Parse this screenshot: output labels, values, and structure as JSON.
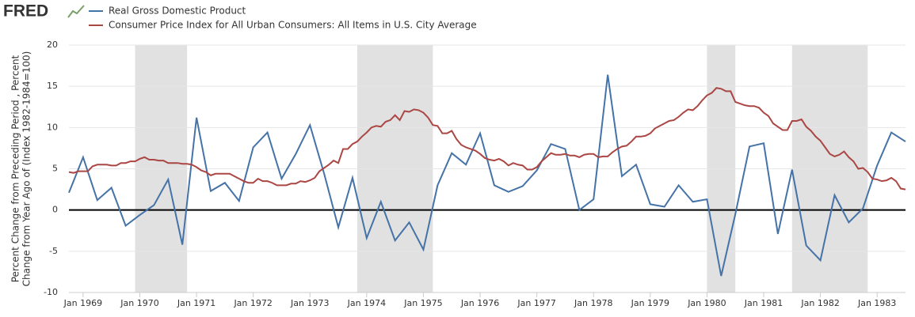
{
  "logo": "FRED",
  "chart_data": {
    "type": "line",
    "y_label_lines": [
      "Percent Change from Preceding Period , Percent",
      "Change from Year Ago of (Index 1982-1984=100)"
    ],
    "xlim": [
      "1968-10",
      "1983-07"
    ],
    "xticks": [
      {
        "value": "1969-01",
        "label": "Jan 1969"
      },
      {
        "value": "1970-01",
        "label": "Jan 1970"
      },
      {
        "value": "1971-01",
        "label": "Jan 1971"
      },
      {
        "value": "1972-01",
        "label": "Jan 1972"
      },
      {
        "value": "1973-01",
        "label": "Jan 1973"
      },
      {
        "value": "1974-01",
        "label": "Jan 1974"
      },
      {
        "value": "1975-01",
        "label": "Jan 1975"
      },
      {
        "value": "1976-01",
        "label": "Jan 1976"
      },
      {
        "value": "1977-01",
        "label": "Jan 1977"
      },
      {
        "value": "1978-01",
        "label": "Jan 1978"
      },
      {
        "value": "1979-01",
        "label": "Jan 1979"
      },
      {
        "value": "1980-01",
        "label": "Jan 1980"
      },
      {
        "value": "1981-01",
        "label": "Jan 1981"
      },
      {
        "value": "1982-01",
        "label": "Jan 1982"
      },
      {
        "value": "1983-01",
        "label": "Jan 1983"
      }
    ],
    "ylim": [
      -10,
      20
    ],
    "yticks": [
      -10,
      -5,
      0,
      5,
      10,
      15,
      20
    ],
    "grid": true,
    "zero_line": true,
    "recessions": [
      [
        "1969-12",
        "1970-11"
      ],
      [
        "1973-11",
        "1975-03"
      ],
      [
        "1980-01",
        "1980-07"
      ],
      [
        "1981-07",
        "1982-11"
      ]
    ],
    "series": [
      {
        "name": "Real Gross Domestic Product",
        "color": "#4572a7",
        "x": [
          "1968-10",
          "1969-01",
          "1969-04",
          "1969-07",
          "1969-10",
          "1970-01",
          "1970-04",
          "1970-07",
          "1970-10",
          "1971-01",
          "1971-04",
          "1971-07",
          "1971-10",
          "1972-01",
          "1972-04",
          "1972-07",
          "1972-10",
          "1973-01",
          "1973-04",
          "1973-07",
          "1973-10",
          "1974-01",
          "1974-04",
          "1974-07",
          "1974-10",
          "1975-01",
          "1975-04",
          "1975-07",
          "1975-10",
          "1976-01",
          "1976-04",
          "1976-07",
          "1976-10",
          "1977-01",
          "1977-04",
          "1977-07",
          "1977-10",
          "1978-01",
          "1978-04",
          "1978-07",
          "1978-10",
          "1979-01",
          "1979-04",
          "1979-07",
          "1979-10",
          "1980-01",
          "1980-04",
          "1980-07",
          "1980-10",
          "1981-01",
          "1981-04",
          "1981-07",
          "1981-10",
          "1982-01",
          "1982-04",
          "1982-07",
          "1982-10",
          "1983-01",
          "1983-04",
          "1983-07"
        ],
        "values": [
          2.1,
          6.4,
          1.2,
          2.7,
          -1.9,
          -0.6,
          0.6,
          3.7,
          -4.2,
          11.2,
          2.3,
          3.3,
          1.1,
          7.6,
          9.4,
          3.8,
          6.8,
          10.3,
          4.4,
          -2.1,
          3.9,
          -3.4,
          1.0,
          -3.7,
          -1.5,
          -4.8,
          3.0,
          6.9,
          5.5,
          9.3,
          3.0,
          2.2,
          2.9,
          4.8,
          8.0,
          7.4,
          0.0,
          1.3,
          16.4,
          4.1,
          5.5,
          0.7,
          0.4,
          3.0,
          1.0,
          1.3,
          -8.0,
          -0.5,
          7.7,
          8.1,
          -2.9,
          4.9,
          -4.3,
          -6.1,
          1.8,
          -1.5,
          0.2,
          5.4,
          9.4,
          8.3
        ]
      },
      {
        "name": "Consumer Price Index for All Urban Consumers: All Items in U.S. City Average",
        "color": "#aa4643",
        "x": [
          "1968-10",
          "1968-11",
          "1968-12",
          "1969-01",
          "1969-02",
          "1969-03",
          "1969-04",
          "1969-05",
          "1969-06",
          "1969-07",
          "1969-08",
          "1969-09",
          "1969-10",
          "1969-11",
          "1969-12",
          "1970-01",
          "1970-02",
          "1970-03",
          "1970-04",
          "1970-05",
          "1970-06",
          "1970-07",
          "1970-08",
          "1970-09",
          "1970-10",
          "1970-11",
          "1970-12",
          "1971-01",
          "1971-02",
          "1971-03",
          "1971-04",
          "1971-05",
          "1971-06",
          "1971-07",
          "1971-08",
          "1971-09",
          "1971-10",
          "1971-11",
          "1971-12",
          "1972-01",
          "1972-02",
          "1972-03",
          "1972-04",
          "1972-05",
          "1972-06",
          "1972-07",
          "1972-08",
          "1972-09",
          "1972-10",
          "1972-11",
          "1972-12",
          "1973-01",
          "1973-02",
          "1973-03",
          "1973-04",
          "1973-05",
          "1973-06",
          "1973-07",
          "1973-08",
          "1973-09",
          "1973-10",
          "1973-11",
          "1973-12",
          "1974-01",
          "1974-02",
          "1974-03",
          "1974-04",
          "1974-05",
          "1974-06",
          "1974-07",
          "1974-08",
          "1974-09",
          "1974-10",
          "1974-11",
          "1974-12",
          "1975-01",
          "1975-02",
          "1975-03",
          "1975-04",
          "1975-05",
          "1975-06",
          "1975-07",
          "1975-08",
          "1975-09",
          "1975-10",
          "1975-11",
          "1975-12",
          "1976-01",
          "1976-02",
          "1976-03",
          "1976-04",
          "1976-05",
          "1976-06",
          "1976-07",
          "1976-08",
          "1976-09",
          "1976-10",
          "1976-11",
          "1976-12",
          "1977-01",
          "1977-02",
          "1977-03",
          "1977-04",
          "1977-05",
          "1977-06",
          "1977-07",
          "1977-08",
          "1977-09",
          "1977-10",
          "1977-11",
          "1977-12",
          "1978-01",
          "1978-02",
          "1978-03",
          "1978-04",
          "1978-05",
          "1978-06",
          "1978-07",
          "1978-08",
          "1978-09",
          "1978-10",
          "1978-11",
          "1978-12",
          "1979-01",
          "1979-02",
          "1979-03",
          "1979-04",
          "1979-05",
          "1979-06",
          "1979-07",
          "1979-08",
          "1979-09",
          "1979-10",
          "1979-11",
          "1979-12",
          "1980-01",
          "1980-02",
          "1980-03",
          "1980-04",
          "1980-05",
          "1980-06",
          "1980-07",
          "1980-08",
          "1980-09",
          "1980-10",
          "1980-11",
          "1980-12",
          "1981-01",
          "1981-02",
          "1981-03",
          "1981-04",
          "1981-05",
          "1981-06",
          "1981-07",
          "1981-08",
          "1981-09",
          "1981-10",
          "1981-11",
          "1981-12",
          "1982-01",
          "1982-02",
          "1982-03",
          "1982-04",
          "1982-05",
          "1982-06",
          "1982-07",
          "1982-08",
          "1982-09",
          "1982-10",
          "1982-11",
          "1982-12",
          "1983-01",
          "1983-02",
          "1983-03",
          "1983-04",
          "1983-05",
          "1983-06",
          "1983-07"
        ],
        "values": [
          4.6,
          4.5,
          4.7,
          4.7,
          4.7,
          5.3,
          5.5,
          5.5,
          5.5,
          5.4,
          5.4,
          5.7,
          5.7,
          5.9,
          5.9,
          6.2,
          6.4,
          6.1,
          6.1,
          6.0,
          6.0,
          5.7,
          5.7,
          5.7,
          5.6,
          5.6,
          5.5,
          5.2,
          4.8,
          4.6,
          4.2,
          4.4,
          4.4,
          4.4,
          4.4,
          4.1,
          3.8,
          3.5,
          3.3,
          3.3,
          3.8,
          3.5,
          3.5,
          3.3,
          3.0,
          3.0,
          3.0,
          3.2,
          3.2,
          3.5,
          3.4,
          3.6,
          3.9,
          4.7,
          5.1,
          5.5,
          6.0,
          5.7,
          7.4,
          7.4,
          8.0,
          8.3,
          8.9,
          9.4,
          10.0,
          10.2,
          10.1,
          10.7,
          10.9,
          11.5,
          10.9,
          12.0,
          11.9,
          12.2,
          12.1,
          11.8,
          11.2,
          10.3,
          10.2,
          9.3,
          9.3,
          9.6,
          8.6,
          7.9,
          7.6,
          7.4,
          7.2,
          6.8,
          6.3,
          6.1,
          6.0,
          6.2,
          5.9,
          5.4,
          5.7,
          5.5,
          5.4,
          4.9,
          4.9,
          5.2,
          5.9,
          6.4,
          6.9,
          6.7,
          6.7,
          6.8,
          6.6,
          6.6,
          6.4,
          6.7,
          6.8,
          6.8,
          6.4,
          6.5,
          6.5,
          7.0,
          7.4,
          7.7,
          7.8,
          8.3,
          8.9,
          8.9,
          9.0,
          9.3,
          9.9,
          10.2,
          10.5,
          10.8,
          10.9,
          11.3,
          11.8,
          12.2,
          12.1,
          12.6,
          13.3,
          13.9,
          14.2,
          14.8,
          14.7,
          14.4,
          14.4,
          13.1,
          12.9,
          12.7,
          12.6,
          12.6,
          12.4,
          11.8,
          11.4,
          10.5,
          10.1,
          9.7,
          9.7,
          10.8,
          10.8,
          11.0,
          10.1,
          9.6,
          8.9,
          8.4,
          7.6,
          6.8,
          6.5,
          6.7,
          7.1,
          6.4,
          5.9,
          5.0,
          5.1,
          4.6,
          3.8,
          3.7,
          3.5,
          3.6,
          3.9,
          3.5,
          2.6,
          2.5
        ]
      }
    ]
  }
}
